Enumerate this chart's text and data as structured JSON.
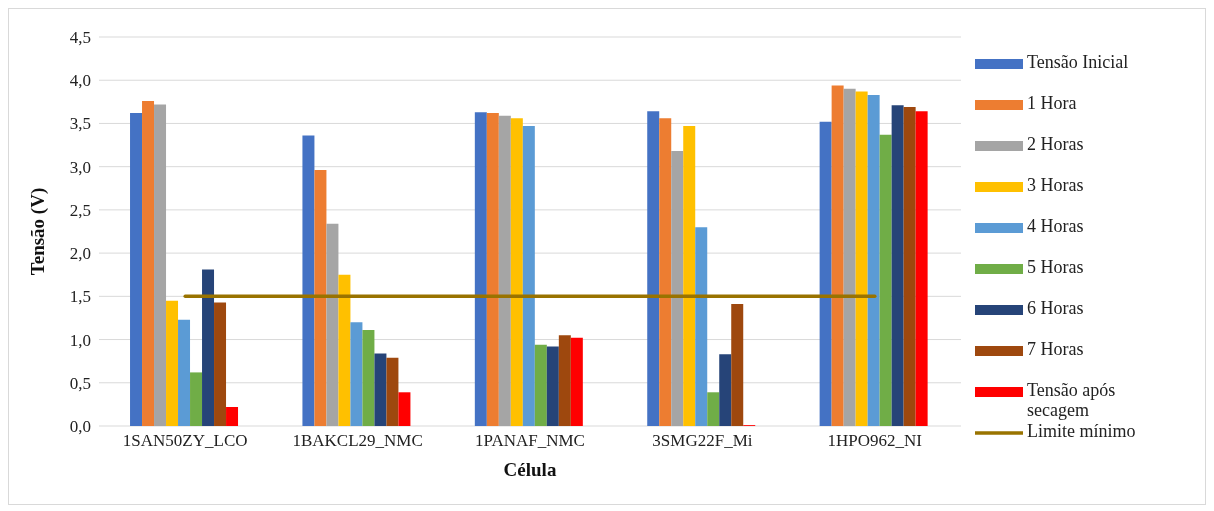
{
  "chart_data": {
    "type": "bar",
    "xlabel": "Célula",
    "ylabel": "Tensão (V)",
    "categories": [
      "1SAN50ZY_LCO",
      "1BAKCL29_NMC",
      "1PANAF_NMC",
      "3SMG22F_Mi",
      "1HPO962_NI"
    ],
    "series": [
      {
        "name": "Tensão Inicial",
        "color": "#4472c4",
        "values": [
          3.62,
          3.36,
          3.63,
          3.64,
          3.52
        ]
      },
      {
        "name": "1 Hora",
        "color": "#ed7d31",
        "values": [
          3.76,
          2.96,
          3.62,
          3.56,
          3.94
        ]
      },
      {
        "name": "2 Horas",
        "color": "#a5a5a5",
        "values": [
          3.72,
          2.34,
          3.59,
          3.18,
          3.9
        ]
      },
      {
        "name": "3 Horas",
        "color": "#ffc000",
        "values": [
          1.45,
          1.75,
          3.56,
          3.47,
          3.87
        ]
      },
      {
        "name": "4 Horas",
        "color": "#5b9bd5",
        "values": [
          1.23,
          1.2,
          3.47,
          2.3,
          3.83
        ]
      },
      {
        "name": "5 Horas",
        "color": "#70ad47",
        "values": [
          0.62,
          1.11,
          0.94,
          0.39,
          3.37
        ]
      },
      {
        "name": "6 Horas",
        "color": "#264478",
        "values": [
          1.81,
          0.84,
          0.92,
          0.83,
          3.71
        ]
      },
      {
        "name": "7 Horas",
        "color": "#9e480e",
        "values": [
          1.43,
          0.79,
          1.05,
          1.41,
          3.69
        ]
      },
      {
        "name": "Tensão após secagem",
        "color": "#ff0000",
        "values": [
          0.22,
          0.39,
          1.02,
          0.01,
          3.64
        ]
      },
      {
        "name": "Limite mínimo",
        "type": "line",
        "color": "#997300",
        "values": [
          1.5,
          1.5,
          1.5,
          1.5,
          1.5
        ]
      }
    ],
    "ylim": [
      0,
      4.5
    ],
    "yticks": [
      {
        "value": 0,
        "label": "0,0"
      },
      {
        "value": 0.5,
        "label": "0,5"
      },
      {
        "value": 1,
        "label": "1,0"
      },
      {
        "value": 1.5,
        "label": "1,5"
      },
      {
        "value": 2,
        "label": "2,0"
      },
      {
        "value": 2.5,
        "label": "2,5"
      },
      {
        "value": 3,
        "label": "3,0"
      },
      {
        "value": 3.5,
        "label": "3,5"
      },
      {
        "value": 4,
        "label": "4,0"
      },
      {
        "value": 4.5,
        "label": "4,5"
      }
    ],
    "grid": "y",
    "legend": "right",
    "marker": "none"
  }
}
